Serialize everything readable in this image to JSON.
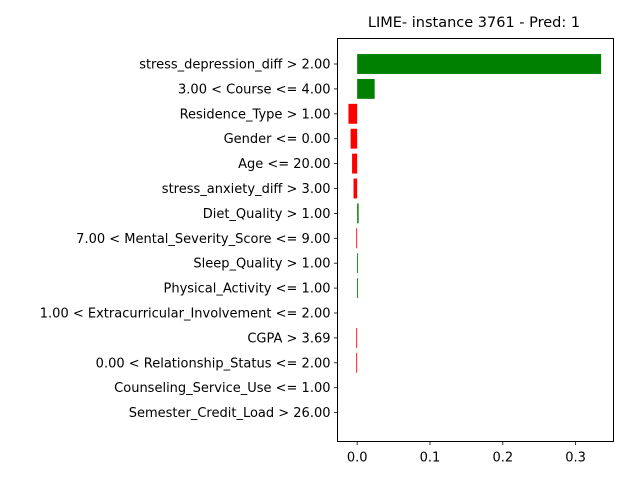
{
  "chart_data": {
    "type": "bar",
    "orientation": "horizontal",
    "title": "LIME- instance 3761 - Pred: 1",
    "xlabel": "",
    "ylabel": "",
    "xlim": [
      -0.027,
      0.352
    ],
    "xticks": [
      0.0,
      0.1,
      0.2,
      0.3
    ],
    "xtick_labels": [
      "0.0",
      "0.1",
      "0.2",
      "0.3"
    ],
    "grid": false,
    "positive_color": "#008000",
    "negative_color": "#ff0000",
    "categories": [
      "stress_depression_diff > 2.00",
      "3.00 < Course <= 4.00",
      "Residence_Type > 1.00",
      "Gender <= 0.00",
      "Age <= 20.00",
      "stress_anxiety_diff > 3.00",
      "Diet_Quality > 1.00",
      "7.00 < Mental_Severity_Score <= 9.00",
      "Sleep_Quality > 1.00",
      "Physical_Activity <= 1.00",
      "1.00 < Extracurricular_Involvement <= 2.00",
      "CGPA > 3.69",
      "0.00 < Relationship_Status <= 2.00",
      "Counseling_Service_Use <= 1.00",
      "Semester_Credit_Load > 26.00"
    ],
    "values": [
      0.335,
      0.024,
      -0.012,
      -0.009,
      -0.007,
      -0.005,
      0.002,
      -0.001,
      0.001,
      0.001,
      0.0,
      -0.001,
      -0.001,
      0.0,
      0.0
    ]
  }
}
